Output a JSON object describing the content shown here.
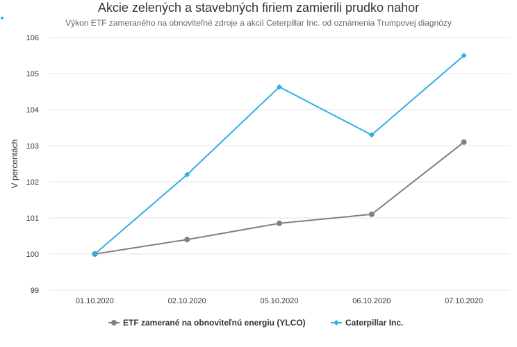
{
  "chart_data": {
    "type": "line",
    "title": "Akcie zelených a stavebných firiem zamierili prudko nahor",
    "subtitle": "Výkon ETF zameraného na obnoviteľné zdroje a akcií Ceterpillar Inc. od oznámenia Trumpovej diagnózy",
    "xlabel": "",
    "ylabel": "V percentách",
    "ylim": [
      99,
      106
    ],
    "yticks": [
      "99",
      "100",
      "101",
      "102",
      "103",
      "104",
      "105",
      "106"
    ],
    "categories": [
      "01.10.2020",
      "02.10.2020",
      "05.10.2020",
      "06.10.2020",
      "07.10.2020"
    ],
    "grid": true,
    "legend": "bottom",
    "series": [
      {
        "name": "ETF zamerané na obnoviteľnú energiu (YLCO)",
        "values": [
          100.0,
          100.4,
          100.85,
          101.1,
          103.1
        ],
        "color": "#808080",
        "marker": "circle"
      },
      {
        "name": "Caterpillar Inc.",
        "values": [
          100.0,
          102.2,
          104.63,
          103.3,
          105.5
        ],
        "color": "#2eb0e5",
        "marker": "diamond"
      }
    ]
  }
}
